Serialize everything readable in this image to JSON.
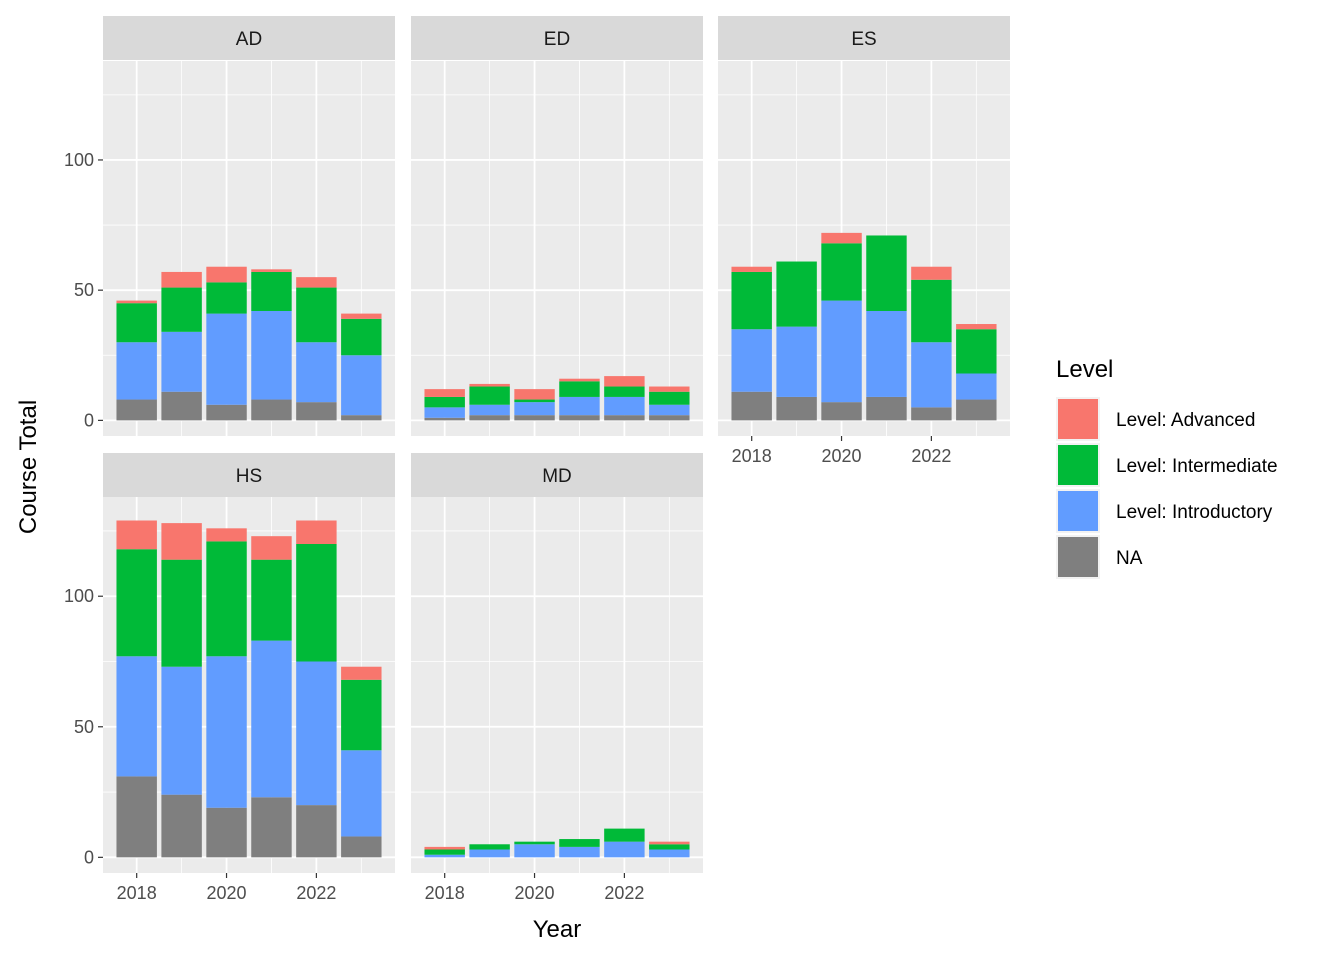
{
  "chart_data": {
    "type": "bar",
    "stacked": true,
    "xlabel": "Year",
    "ylabel": "Course Total",
    "x": [
      2018,
      2019,
      2020,
      2021,
      2022,
      2023
    ],
    "x_tick_labels": [
      "2018",
      "2020",
      "2022"
    ],
    "x_ticks": [
      2018,
      2020,
      2022
    ],
    "y_tick_labels": [
      "0",
      "50",
      "100"
    ],
    "y_ticks": [
      0,
      50,
      100
    ],
    "ylim": [
      -6,
      138
    ],
    "xlim": [
      2017.25,
      2023.75
    ],
    "grid": true,
    "legend": {
      "title": "Level",
      "position": "right",
      "entries": [
        "Level: Advanced",
        "Level: Intermediate",
        "Level: Introductory",
        "NA"
      ]
    },
    "colors": {
      "Level: Advanced": "#F8766D",
      "Level: Intermediate": "#00BA38",
      "Level: Introductory": "#619CFF",
      "NA": "#7F7F7F",
      "panel_bg": "#EBEBEB",
      "strip_bg": "#D9D9D9",
      "grid": "#FFFFFF"
    },
    "facets": [
      {
        "label": "AD",
        "series": [
          {
            "name": "NA",
            "values": [
              8,
              11,
              6,
              8,
              7,
              2
            ]
          },
          {
            "name": "Level: Introductory",
            "values": [
              22,
              23,
              35,
              34,
              23,
              23
            ]
          },
          {
            "name": "Level: Intermediate",
            "values": [
              15,
              17,
              12,
              15,
              21,
              14
            ]
          },
          {
            "name": "Level: Advanced",
            "values": [
              1,
              6,
              6,
              1,
              4,
              2
            ]
          }
        ]
      },
      {
        "label": "ED",
        "series": [
          {
            "name": "NA",
            "values": [
              1,
              2,
              2,
              2,
              2,
              2
            ]
          },
          {
            "name": "Level: Introductory",
            "values": [
              4,
              4,
              5,
              7,
              7,
              4
            ]
          },
          {
            "name": "Level: Intermediate",
            "values": [
              4,
              7,
              1,
              6,
              4,
              5
            ]
          },
          {
            "name": "Level: Advanced",
            "values": [
              3,
              1,
              4,
              1,
              4,
              2
            ]
          }
        ]
      },
      {
        "label": "ES",
        "series": [
          {
            "name": "NA",
            "values": [
              11,
              9,
              7,
              9,
              5,
              8
            ]
          },
          {
            "name": "Level: Introductory",
            "values": [
              24,
              27,
              39,
              33,
              25,
              10
            ]
          },
          {
            "name": "Level: Intermediate",
            "values": [
              22,
              25,
              22,
              29,
              24,
              17
            ]
          },
          {
            "name": "Level: Advanced",
            "values": [
              2,
              0,
              4,
              0,
              5,
              2
            ]
          }
        ]
      },
      {
        "label": "HS",
        "series": [
          {
            "name": "NA",
            "values": [
              31,
              24,
              19,
              23,
              20,
              8
            ]
          },
          {
            "name": "Level: Introductory",
            "values": [
              46,
              49,
              58,
              60,
              55,
              33
            ]
          },
          {
            "name": "Level: Intermediate",
            "values": [
              41,
              41,
              44,
              31,
              45,
              27
            ]
          },
          {
            "name": "Level: Advanced",
            "values": [
              11,
              14,
              5,
              9,
              9,
              5
            ]
          }
        ]
      },
      {
        "label": "MD",
        "series": [
          {
            "name": "NA",
            "values": [
              0,
              0,
              0,
              0,
              0,
              0
            ]
          },
          {
            "name": "Level: Introductory",
            "values": [
              1,
              3,
              5,
              4,
              6,
              3
            ]
          },
          {
            "name": "Level: Intermediate",
            "values": [
              2,
              2,
              1,
              3,
              5,
              2
            ]
          },
          {
            "name": "Level: Advanced",
            "values": [
              1,
              0,
              0,
              0,
              0,
              1
            ]
          }
        ]
      }
    ]
  }
}
